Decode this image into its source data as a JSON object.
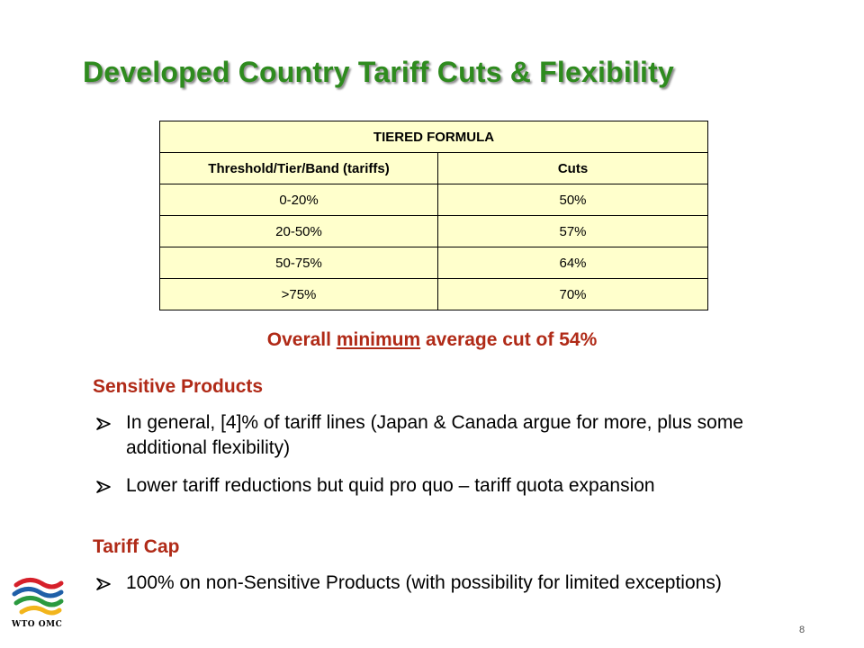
{
  "slide": {
    "title": "Developed Country Tariff Cuts & Flexibility",
    "page_number": "8"
  },
  "table": {
    "title": "TIERED FORMULA",
    "headers": [
      "Threshold/Tier/Band (tariffs)",
      "Cuts"
    ],
    "rows": [
      [
        "0-20%",
        "50%"
      ],
      [
        "20-50%",
        "57%"
      ],
      [
        "50-75%",
        "64%"
      ],
      [
        ">75%",
        "70%"
      ]
    ]
  },
  "overall": {
    "pre": "Overall ",
    "underlined": "minimum",
    "post": " average cut of 54%"
  },
  "sensitive": {
    "heading": "Sensitive Products",
    "bullets": [
      "In general, [4]% of tariff lines (Japan & Canada argue for more, plus some additional flexibility)",
      "Lower tariff reductions but quid pro quo – tariff quota expansion"
    ]
  },
  "cap": {
    "heading": "Tariff Cap",
    "bullets": [
      "100% on non-Sensitive Products (with possibility for limited exceptions)"
    ]
  },
  "logo": {
    "icon": "wto-logo-icon",
    "text": "WTO OMC",
    "colors": [
      "#d6202a",
      "#1f5fa8",
      "#2b9a3f",
      "#f2b51c"
    ]
  },
  "colors": {
    "title": "#2e8b1e",
    "accent": "#b02a17",
    "table_fill": "#ffffcc"
  }
}
